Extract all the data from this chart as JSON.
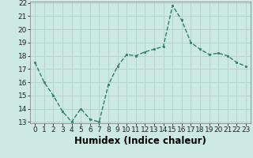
{
  "x": [
    0,
    1,
    2,
    3,
    4,
    5,
    6,
    7,
    8,
    9,
    10,
    11,
    12,
    13,
    14,
    15,
    16,
    17,
    18,
    19,
    20,
    21,
    22,
    23
  ],
  "y": [
    17.5,
    16.0,
    15.0,
    13.8,
    13.0,
    14.0,
    13.2,
    13.0,
    15.8,
    17.2,
    18.1,
    18.0,
    18.3,
    18.5,
    18.7,
    21.8,
    20.7,
    19.0,
    18.5,
    18.1,
    18.2,
    18.0,
    17.5,
    17.2
  ],
  "xlabel": "Humidex (Indice chaleur)",
  "ylim_min": 13,
  "ylim_max": 22,
  "xlim_min": -0.5,
  "xlim_max": 23.5,
  "yticks": [
    13,
    14,
    15,
    16,
    17,
    18,
    19,
    20,
    21,
    22
  ],
  "xticks": [
    0,
    1,
    2,
    3,
    4,
    5,
    6,
    7,
    8,
    9,
    10,
    11,
    12,
    13,
    14,
    15,
    16,
    17,
    18,
    19,
    20,
    21,
    22,
    23
  ],
  "line_color": "#2e7d6e",
  "bg_color": "#cce9e4",
  "grid_color": "#b5d4cf",
  "tick_label_fontsize": 6.5,
  "xlabel_fontsize": 8.5
}
